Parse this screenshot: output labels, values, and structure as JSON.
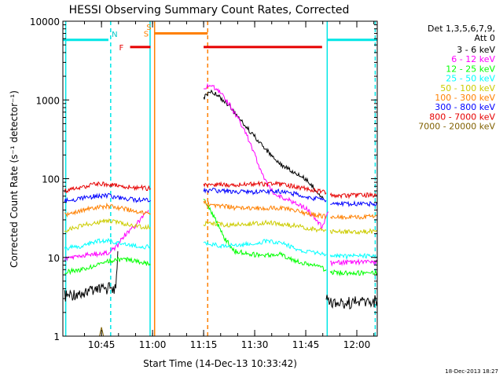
{
  "chart_data": {
    "type": "line",
    "title": "HESSI Observing Summary Count Rates, Corrected",
    "xlabel": "Start Time (14-Dec-13 10:33:42)",
    "ylabel": "Corrected Count Rate (s⁻¹ detector⁻¹)",
    "yscale": "log",
    "xlim": [
      10.561,
      12.1
    ],
    "ylim": [
      1,
      10000
    ],
    "x_ticks": [
      {
        "value": 10.75,
        "label": "10:45"
      },
      {
        "value": 11.0,
        "label": "11:00"
      },
      {
        "value": 11.25,
        "label": "11:15"
      },
      {
        "value": 11.5,
        "label": "11:30"
      },
      {
        "value": 11.75,
        "label": "11:45"
      },
      {
        "value": 12.0,
        "label": "12:00"
      }
    ],
    "y_ticks": [
      {
        "value": 1,
        "label": "1"
      },
      {
        "value": 10,
        "label": "10"
      },
      {
        "value": 100,
        "label": "100"
      },
      {
        "value": 1000,
        "label": "1000"
      },
      {
        "value": 10000,
        "label": "10000"
      }
    ],
    "legend_header": [
      "Det 1,3,5,6,7,9,",
      "Att 0"
    ],
    "legend_position": "right",
    "footer_date": "18-Dec-2013 18:27",
    "series": [
      {
        "name": "3 - 6 keV",
        "color": "#000000",
        "segments": [
          [
            [
              10.57,
              3.2
            ],
            [
              10.65,
              3.6
            ],
            [
              10.72,
              3.8
            ],
            [
              10.78,
              4.0
            ],
            [
              10.82,
              4.2
            ],
            [
              10.83,
              12
            ]
          ],
          [
            [
              11.25,
              1050
            ],
            [
              11.28,
              1300
            ],
            [
              11.32,
              1150
            ],
            [
              11.38,
              820
            ],
            [
              11.45,
              480
            ],
            [
              11.52,
              300
            ],
            [
              11.58,
              200
            ],
            [
              11.64,
              145
            ],
            [
              11.7,
              118
            ],
            [
              11.75,
              98
            ],
            [
              11.8,
              72
            ],
            [
              11.84,
              54
            ]
          ],
          [
            [
              11.85,
              3.0
            ],
            [
              11.9,
              2.6
            ],
            [
              12.0,
              2.7
            ],
            [
              12.1,
              2.8
            ]
          ]
        ]
      },
      {
        "name": "6 - 12 keV",
        "color": "#ff00ff",
        "segments": [
          [
            [
              10.57,
              9.5
            ],
            [
              10.65,
              10.5
            ],
            [
              10.72,
              11
            ],
            [
              10.78,
              11.5
            ],
            [
              10.83,
              14
            ],
            [
              10.86,
              19
            ],
            [
              10.9,
              23
            ],
            [
              10.94,
              30
            ],
            [
              10.98,
              40
            ]
          ],
          [
            [
              11.25,
              1400
            ],
            [
              11.28,
              1580
            ],
            [
              11.32,
              1350
            ],
            [
              11.38,
              850
            ],
            [
              11.45,
              420
            ],
            [
              11.5,
              200
            ],
            [
              11.55,
              95
            ],
            [
              11.6,
              62
            ],
            [
              11.68,
              52
            ],
            [
              11.75,
              42
            ],
            [
              11.8,
              31
            ],
            [
              11.83,
              24
            ],
            [
              11.86,
              38
            ]
          ],
          [
            [
              11.87,
              8.5
            ],
            [
              11.95,
              8.7
            ],
            [
              12.1,
              8.8
            ]
          ]
        ]
      },
      {
        "name": "12 - 25 keV",
        "color": "#00ff00",
        "segments": [
          [
            [
              10.57,
              6.5
            ],
            [
              10.65,
              7.0
            ],
            [
              10.72,
              7.8
            ],
            [
              10.78,
              9.0
            ],
            [
              10.85,
              9.5
            ],
            [
              10.92,
              9.0
            ],
            [
              10.99,
              8.0
            ]
          ],
          [
            [
              11.25,
              55
            ],
            [
              11.3,
              33
            ],
            [
              11.35,
              18
            ],
            [
              11.4,
              12
            ],
            [
              11.48,
              11
            ],
            [
              11.55,
              10.5
            ],
            [
              11.62,
              11
            ],
            [
              11.7,
              9
            ],
            [
              11.78,
              8
            ],
            [
              11.85,
              7.0
            ]
          ],
          [
            [
              11.87,
              6.5
            ],
            [
              11.95,
              6.3
            ],
            [
              12.1,
              6.4
            ]
          ]
        ]
      },
      {
        "name": "25 - 50 keV",
        "color": "#00ffff",
        "segments": [
          [
            [
              10.57,
              13
            ],
            [
              10.65,
              14
            ],
            [
              10.72,
              16
            ],
            [
              10.78,
              16.5
            ],
            [
              10.85,
              15
            ],
            [
              10.92,
              14
            ],
            [
              10.99,
              13.5
            ]
          ],
          [
            [
              11.25,
              15
            ],
            [
              11.35,
              14
            ],
            [
              11.45,
              14.5
            ],
            [
              11.55,
              16
            ],
            [
              11.62,
              15.5
            ],
            [
              11.7,
              13
            ],
            [
              11.78,
              11.5
            ],
            [
              11.85,
              11
            ]
          ],
          [
            [
              11.87,
              10.5
            ],
            [
              11.95,
              10.3
            ],
            [
              12.1,
              10.5
            ]
          ]
        ]
      },
      {
        "name": "50 - 100 keV",
        "color": "#cccc00",
        "segments": [
          [
            [
              10.57,
              22
            ],
            [
              10.65,
              25
            ],
            [
              10.72,
              28
            ],
            [
              10.78,
              29
            ],
            [
              10.85,
              27
            ],
            [
              10.92,
              25
            ],
            [
              10.99,
              24
            ]
          ],
          [
            [
              11.25,
              27
            ],
            [
              11.35,
              26
            ],
            [
              11.45,
              26.5
            ],
            [
              11.55,
              27.5
            ],
            [
              11.62,
              27
            ],
            [
              11.7,
              25
            ],
            [
              11.78,
              23
            ],
            [
              11.85,
              22
            ]
          ],
          [
            [
              11.87,
              21
            ],
            [
              11.95,
              21
            ],
            [
              12.1,
              21.5
            ]
          ]
        ]
      },
      {
        "name": "100 - 300 keV",
        "color": "#ff8000",
        "segments": [
          [
            [
              10.57,
              35
            ],
            [
              10.65,
              39
            ],
            [
              10.72,
              43
            ],
            [
              10.78,
              45
            ],
            [
              10.85,
              42
            ],
            [
              10.92,
              38
            ],
            [
              10.99,
              36
            ]
          ],
          [
            [
              11.25,
              50
            ],
            [
              11.3,
              46
            ],
            [
              11.4,
              43
            ],
            [
              11.5,
              42
            ],
            [
              11.58,
              43
            ],
            [
              11.65,
              42
            ],
            [
              11.72,
              38
            ],
            [
              11.78,
              35
            ],
            [
              11.85,
              33
            ]
          ],
          [
            [
              11.87,
              32
            ],
            [
              11.95,
              32.5
            ],
            [
              12.1,
              33
            ]
          ]
        ]
      },
      {
        "name": "300 - 800 keV",
        "color": "#0000ff",
        "segments": [
          [
            [
              10.57,
              52
            ],
            [
              10.65,
              56
            ],
            [
              10.72,
              60
            ],
            [
              10.78,
              61
            ],
            [
              10.85,
              57
            ],
            [
              10.92,
              54
            ],
            [
              10.99,
              53
            ]
          ],
          [
            [
              11.25,
              72
            ],
            [
              11.35,
              70
            ],
            [
              11.45,
              68
            ],
            [
              11.55,
              68
            ],
            [
              11.62,
              69
            ],
            [
              11.7,
              64
            ],
            [
              11.78,
              57
            ],
            [
              11.85,
              53
            ]
          ],
          [
            [
              11.87,
              49
            ],
            [
              11.95,
              48
            ],
            [
              12.1,
              48
            ]
          ]
        ]
      },
      {
        "name": "800 - 7000 keV",
        "color": "#e60000",
        "segments": [
          [
            [
              10.57,
              70
            ],
            [
              10.65,
              76
            ],
            [
              10.72,
              86
            ],
            [
              10.78,
              84
            ],
            [
              10.85,
              80
            ],
            [
              10.92,
              77
            ],
            [
              10.99,
              75
            ]
          ],
          [
            [
              11.25,
              85
            ],
            [
              11.35,
              83
            ],
            [
              11.45,
              84
            ],
            [
              11.55,
              86
            ],
            [
              11.62,
              85
            ],
            [
              11.7,
              79
            ],
            [
              11.78,
              72
            ],
            [
              11.85,
              66
            ]
          ],
          [
            [
              11.87,
              61
            ],
            [
              11.95,
              61
            ],
            [
              12.1,
              62
            ]
          ]
        ]
      },
      {
        "name": "7000 - 20000 keV",
        "color": "#806000",
        "segments": [
          [
            [
              10.74,
              1.0
            ],
            [
              10.75,
              1.3
            ],
            [
              10.76,
              1.0
            ]
          ]
        ]
      }
    ],
    "bands": [
      {
        "label": "",
        "color": "#00e6e6",
        "y": 5800,
        "x": [
          10.561,
          10.784
        ]
      },
      {
        "label": "",
        "color": "#00e6e6",
        "y": 5800,
        "x": [
          11.857,
          12.1
        ]
      },
      {
        "label": "F",
        "color": "#e60000",
        "y": 4700,
        "x": [
          10.89,
          10.99
        ]
      },
      {
        "label": "",
        "color": "#e60000",
        "y": 4700,
        "x": [
          11.25,
          11.83
        ]
      },
      {
        "label": "S",
        "color": "#ff8000",
        "y": 7000,
        "x": [
          11.01,
          11.27
        ]
      }
    ],
    "band_letters": [
      {
        "text": "N",
        "color": "#00c8c8",
        "x": 10.8,
        "y": 6300
      },
      {
        "text": "S",
        "color": "#ff8000",
        "x": 10.97,
        "y": 7800
      }
    ],
    "vlines": [
      {
        "x": 10.575,
        "color": "#00e6e6",
        "style": "solid"
      },
      {
        "x": 10.795,
        "color": "#00e6e6",
        "style": "dashed"
      },
      {
        "x": 10.988,
        "color": "#00e6e6",
        "style": "solid"
      },
      {
        "x": 11.01,
        "color": "#ff8000",
        "style": "solid"
      },
      {
        "x": 11.27,
        "color": "#ff8000",
        "style": "dashed"
      },
      {
        "x": 11.855,
        "color": "#00e6e6",
        "style": "solid"
      },
      {
        "x": 12.09,
        "color": "#00e6e6",
        "style": "dashed"
      }
    ]
  }
}
